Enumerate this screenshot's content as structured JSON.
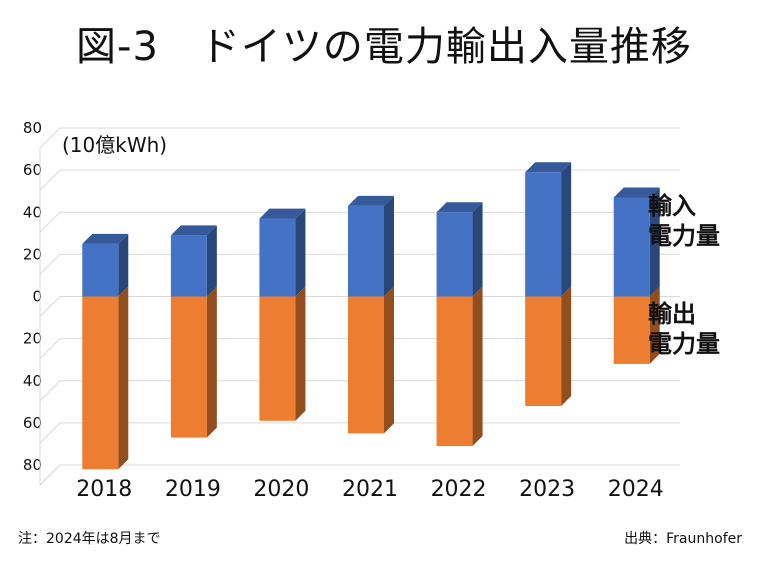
{
  "title": "図-3　ドイツの電力輸出入量推移",
  "note": "注：2024年は8月まで",
  "source": "出典：Fraunhofer",
  "colors": {
    "import": "#4472c4",
    "export": "#ed7d31",
    "grid": "#d9d9d9"
  },
  "chart_data": {
    "type": "bar",
    "stacked": true,
    "unit_label": "(10億kWh)",
    "categories": [
      "2018",
      "2019",
      "2020",
      "2021",
      "2022",
      "2023",
      "2024"
    ],
    "series": [
      {
        "name": "輸入\n電力量",
        "values": [
          25,
          29,
          37,
          43,
          40,
          59,
          47
        ]
      },
      {
        "name": "輸出\n電力量",
        "values": [
          -82,
          -67,
          -59,
          -65,
          -71,
          -52,
          -32
        ]
      }
    ],
    "y_tick_labels": [
      "80",
      "60",
      "40",
      "20",
      "0",
      "20",
      "40",
      "60",
      "80"
    ],
    "ylim": [
      -80,
      80
    ],
    "grid": true,
    "legend": "right"
  }
}
